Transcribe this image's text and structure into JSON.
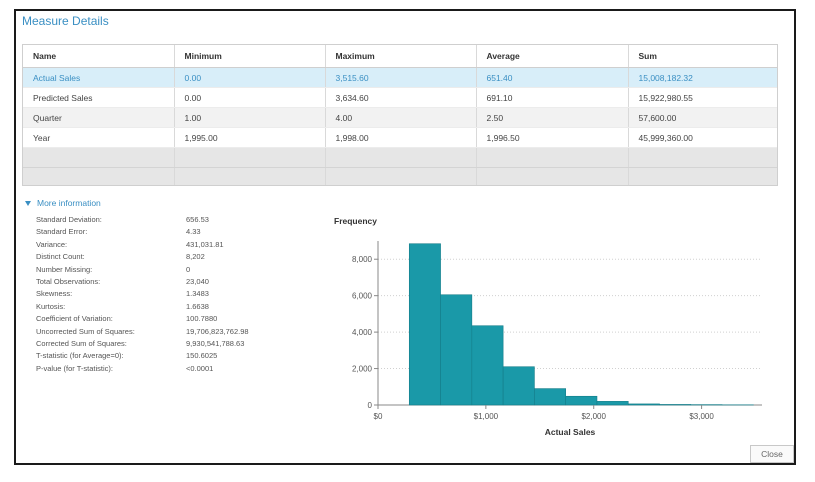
{
  "title": "Measure Details",
  "table": {
    "headers": [
      "Name",
      "Minimum",
      "Maximum",
      "Average",
      "Sum"
    ],
    "rows": [
      [
        "Actual Sales",
        "0.00",
        "3,515.60",
        "651.40",
        "15,008,182.32"
      ],
      [
        "Predicted Sales",
        "0.00",
        "3,634.60",
        "691.10",
        "15,922,980.55"
      ],
      [
        "Quarter",
        "1.00",
        "4.00",
        "2.50",
        "57,600.00"
      ],
      [
        "Year",
        "1,995.00",
        "1,998.00",
        "1,996.50",
        "45,999,360.00"
      ]
    ],
    "selected_row": 0
  },
  "more_info_label": "More information",
  "stats": [
    {
      "label": "Standard Deviation:",
      "value": "656.53"
    },
    {
      "label": "Standard Error:",
      "value": "4.33"
    },
    {
      "label": "Variance:",
      "value": "431,031.81"
    },
    {
      "label": "Distinct Count:",
      "value": "8,202"
    },
    {
      "label": "Number Missing:",
      "value": "0"
    },
    {
      "label": "Total Observations:",
      "value": "23,040"
    },
    {
      "label": "Skewness:",
      "value": "1.3483"
    },
    {
      "label": "Kurtosis:",
      "value": "1.6638"
    },
    {
      "label": "Coefficient of Variation:",
      "value": "100.7880"
    },
    {
      "label": "Uncorrected Sum of Squares:",
      "value": "19,706,823,762.98"
    },
    {
      "label": "Corrected Sum of Squares:",
      "value": "9,930,541,788.63"
    },
    {
      "label": "T-statistic (for Average=0):",
      "value": "150.6025"
    },
    {
      "label": "P-value (for T-statistic):",
      "value": "<0.0001"
    }
  ],
  "chart_data": {
    "type": "bar",
    "ylabel": "Frequency",
    "xlabel": "Actual Sales",
    "x_ticks": [
      {
        "value": 0,
        "label": "$0"
      },
      {
        "value": 1000,
        "label": "$1,000"
      },
      {
        "value": 2000,
        "label": "$2,000"
      },
      {
        "value": 3000,
        "label": "$3,000"
      }
    ],
    "y_ticks": [
      0,
      2000,
      4000,
      6000,
      8000
    ],
    "y_tick_labels": [
      "0",
      "2,000",
      "4,000",
      "6,000",
      "8,000"
    ],
    "xlim": [
      0,
      3560
    ],
    "ylim": [
      0,
      9000
    ],
    "bins": [
      {
        "start": 0,
        "end": 290,
        "count": 0
      },
      {
        "start": 290,
        "end": 580,
        "count": 8850
      },
      {
        "start": 580,
        "end": 870,
        "count": 6050
      },
      {
        "start": 870,
        "end": 1160,
        "count": 4350
      },
      {
        "start": 1160,
        "end": 1450,
        "count": 2100
      },
      {
        "start": 1450,
        "end": 1740,
        "count": 900
      },
      {
        "start": 1740,
        "end": 2030,
        "count": 480
      },
      {
        "start": 2030,
        "end": 2320,
        "count": 200
      },
      {
        "start": 2320,
        "end": 2610,
        "count": 60
      },
      {
        "start": 2610,
        "end": 2900,
        "count": 30
      },
      {
        "start": 2900,
        "end": 3190,
        "count": 20
      },
      {
        "start": 3190,
        "end": 3480,
        "count": 10
      }
    ],
    "bar_color": "#1a99a8",
    "grid": true
  },
  "close_label": "Close"
}
